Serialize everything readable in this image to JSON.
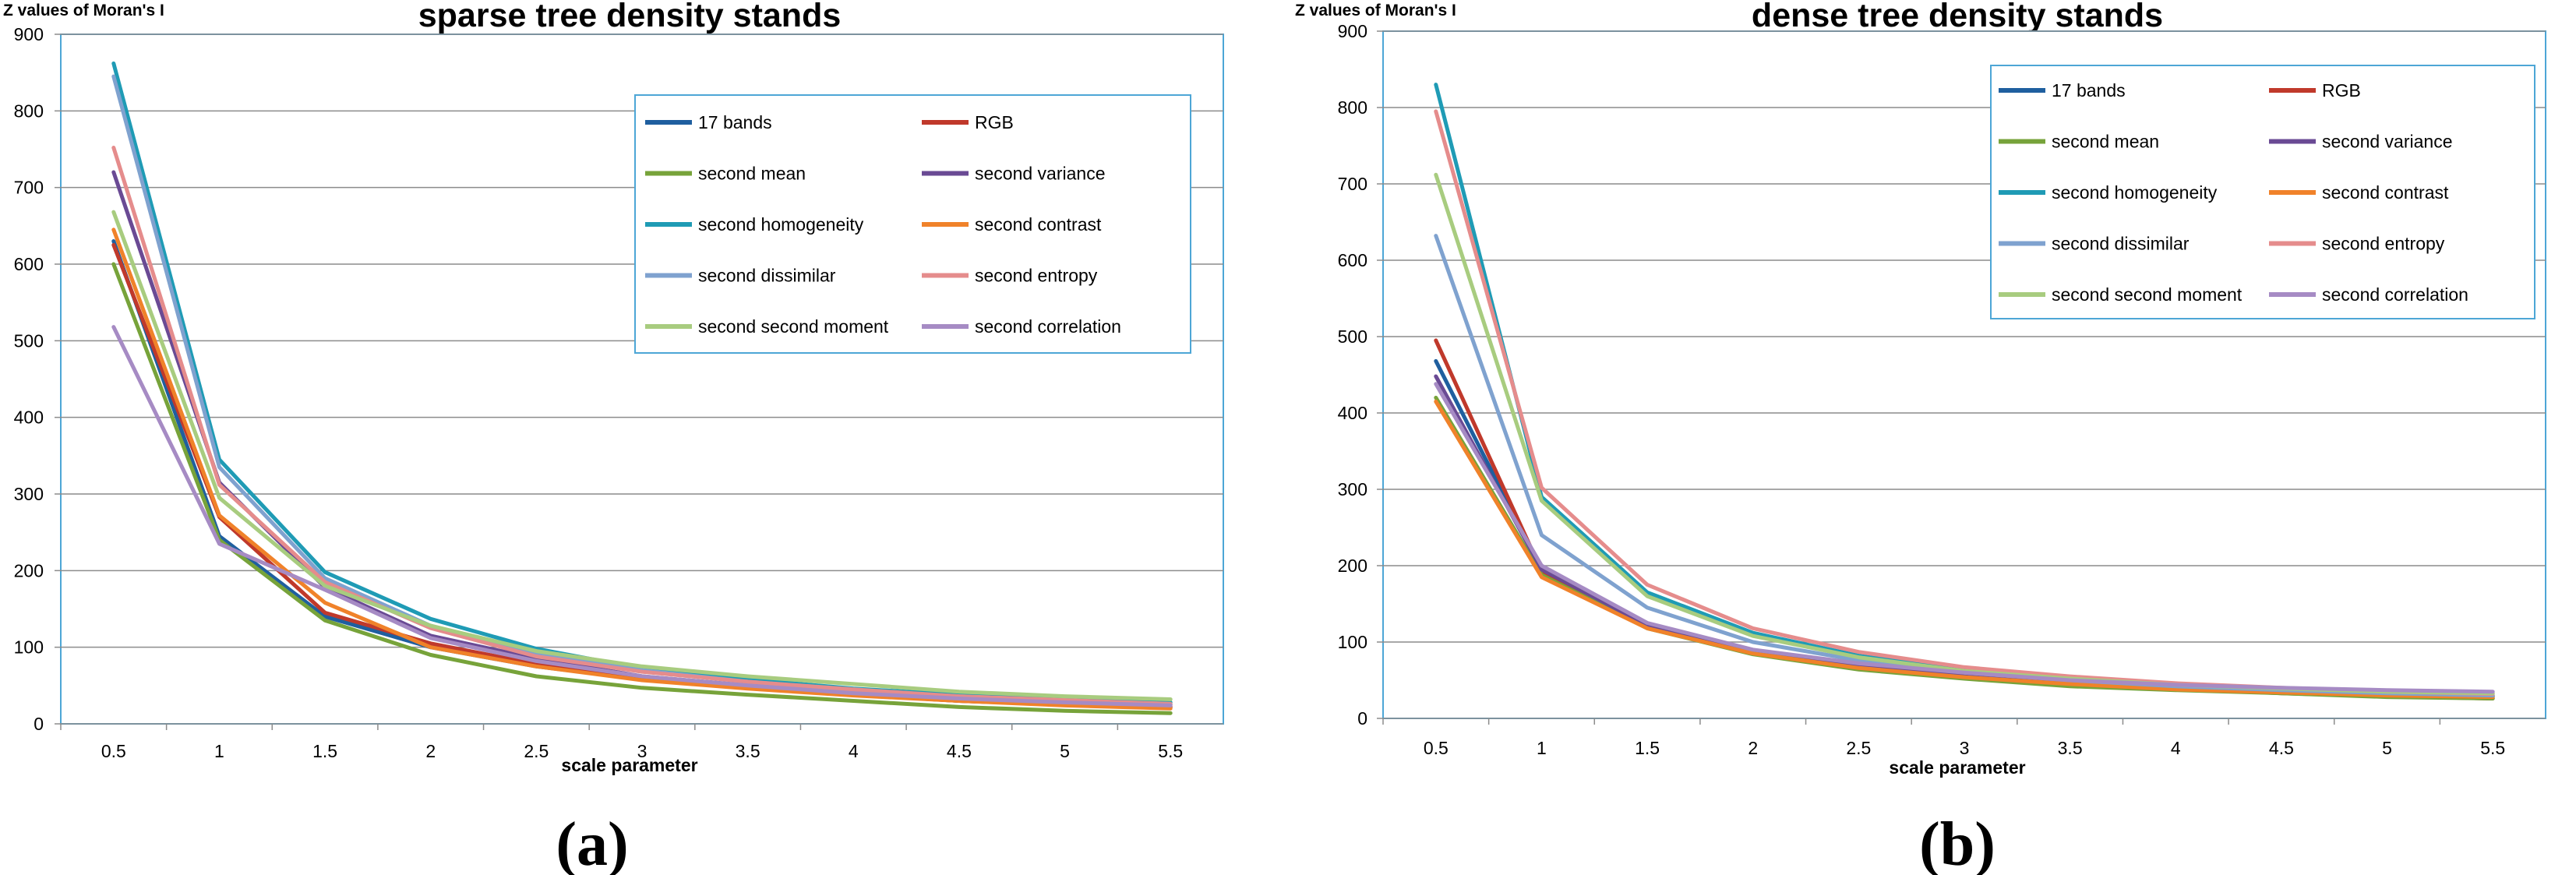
{
  "chart_data": [
    {
      "type": "line",
      "title": "sparse tree density stands",
      "xlabel": "scale parameter",
      "ylabel": "Z values  of Moran's  I",
      "panel_label": "(a)",
      "categories": [
        "0.5",
        "1",
        "1.5",
        "2",
        "2.5",
        "3",
        "3.5",
        "4",
        "4.5",
        "5",
        "5.5"
      ],
      "ylim": [
        0,
        900
      ],
      "yticks": [
        "0",
        "100",
        "200",
        "300",
        "400",
        "500",
        "600",
        "700",
        "800",
        "900"
      ],
      "grid": true,
      "legend_position": "top-right",
      "series": [
        {
          "name": "17 bands",
          "color": "#1f5f9f",
          "values": [
            630,
            245,
            140,
            100,
            75,
            58,
            48,
            38,
            30,
            25,
            22
          ]
        },
        {
          "name": "RGB",
          "color": "#c0392b",
          "values": [
            625,
            270,
            145,
            105,
            78,
            60,
            48,
            38,
            30,
            25,
            22
          ]
        },
        {
          "name": "second mean",
          "color": "#77a33a",
          "values": [
            600,
            240,
            135,
            90,
            62,
            47,
            38,
            30,
            22,
            17,
            14
          ]
        },
        {
          "name": "second variance",
          "color": "#6a4a94",
          "values": [
            720,
            315,
            178,
            115,
            85,
            62,
            50,
            42,
            35,
            30,
            25
          ]
        },
        {
          "name": "second homogeneity",
          "color": "#1f9bb5",
          "values": [
            862,
            345,
            198,
            137,
            98,
            72,
            58,
            46,
            38,
            33,
            28
          ]
        },
        {
          "name": "second contrast",
          "color": "#f0822a",
          "values": [
            645,
            272,
            158,
            100,
            75,
            57,
            46,
            37,
            30,
            24,
            20
          ]
        },
        {
          "name": "second dissimilar",
          "color": "#7fa2cf",
          "values": [
            845,
            335,
            190,
            128,
            92,
            70,
            55,
            44,
            36,
            30,
            26
          ]
        },
        {
          "name": "second entropy",
          "color": "#e58c8c",
          "values": [
            752,
            312,
            185,
            125,
            88,
            68,
            55,
            45,
            36,
            31,
            26
          ]
        },
        {
          "name": "second second moment",
          "color": "#a8cc7f",
          "values": [
            668,
            295,
            180,
            128,
            95,
            75,
            62,
            52,
            42,
            36,
            32
          ]
        },
        {
          "name": "second correlation",
          "color": "#a68bc4",
          "values": [
            518,
            235,
            175,
            112,
            82,
            62,
            50,
            40,
            33,
            28,
            24
          ]
        }
      ]
    },
    {
      "type": "line",
      "title": "dense tree density stands",
      "xlabel": "scale parameter",
      "ylabel": "Z values  of Moran's  I",
      "panel_label": "(b)",
      "categories": [
        "0.5",
        "1",
        "1.5",
        "2",
        "2.5",
        "3",
        "3.5",
        "4",
        "4.5",
        "5",
        "5.5"
      ],
      "ylim": [
        0,
        900
      ],
      "yticks": [
        "0",
        "100",
        "200",
        "300",
        "400",
        "500",
        "600",
        "700",
        "800",
        "900"
      ],
      "grid": true,
      "legend_position": "top-right",
      "series": [
        {
          "name": "17 bands",
          "color": "#1f5f9f",
          "values": [
            468,
            195,
            122,
            88,
            70,
            57,
            48,
            40,
            35,
            30,
            28
          ]
        },
        {
          "name": "RGB",
          "color": "#c0392b",
          "values": [
            495,
            193,
            122,
            86,
            68,
            55,
            45,
            39,
            33,
            29,
            26
          ]
        },
        {
          "name": "second mean",
          "color": "#77a33a",
          "values": [
            420,
            188,
            118,
            84,
            64,
            52,
            42,
            37,
            33,
            28,
            26
          ]
        },
        {
          "name": "second variance",
          "color": "#6a4a94",
          "values": [
            448,
            195,
            122,
            88,
            70,
            57,
            48,
            41,
            36,
            32,
            29
          ]
        },
        {
          "name": "second homogeneity",
          "color": "#1f9bb5",
          "values": [
            830,
            290,
            165,
            112,
            82,
            63,
            52,
            44,
            38,
            33,
            30
          ]
        },
        {
          "name": "second contrast",
          "color": "#f0822a",
          "values": [
            415,
            185,
            118,
            85,
            66,
            54,
            45,
            38,
            34,
            30,
            28
          ]
        },
        {
          "name": "second dissimilar",
          "color": "#7fa2cf",
          "values": [
            632,
            240,
            145,
            100,
            76,
            60,
            50,
            42,
            37,
            33,
            30
          ]
        },
        {
          "name": "second entropy",
          "color": "#e58c8c",
          "values": [
            795,
            302,
            175,
            118,
            87,
            67,
            55,
            46,
            40,
            35,
            32
          ]
        },
        {
          "name": "second second moment",
          "color": "#a8cc7f",
          "values": [
            712,
            285,
            160,
            108,
            80,
            62,
            52,
            44,
            39,
            35,
            33
          ]
        },
        {
          "name": "second correlation",
          "color": "#a68bc4",
          "values": [
            438,
            200,
            125,
            90,
            72,
            60,
            50,
            44,
            40,
            37,
            35
          ]
        }
      ]
    }
  ]
}
